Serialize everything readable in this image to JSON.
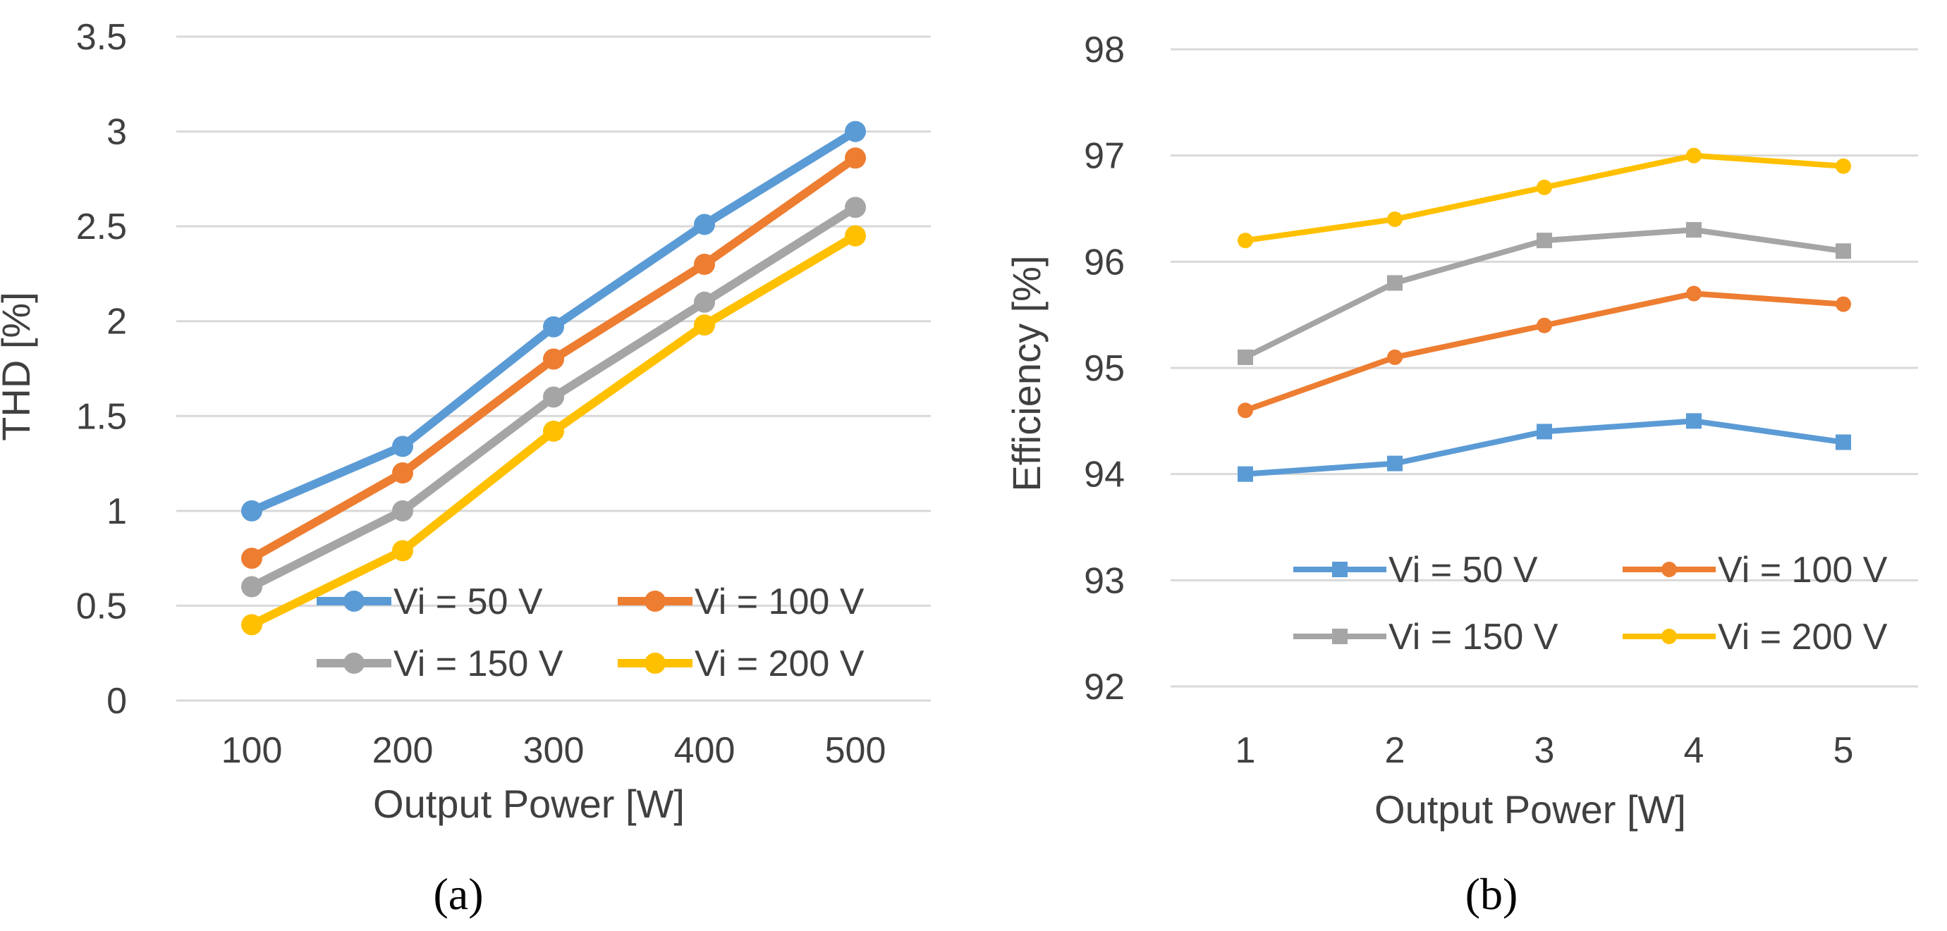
{
  "colors": {
    "s1": "#5B9BD5",
    "s2": "#ED7D31",
    "s3": "#A5A5A5",
    "s4": "#FFC000",
    "grid": "#D9D9D9",
    "text": "#404040"
  },
  "chart_data": [
    {
      "type": "line",
      "panel_label": "(a)",
      "categories": [
        "100",
        "200",
        "300",
        "400",
        "500"
      ],
      "xlabel": "Output Power [W]",
      "ylabel": "THD [%]",
      "ylim": [
        0,
        3.5
      ],
      "ytick_labels": [
        "0",
        "0.5",
        "1",
        "1.5",
        "2",
        "2.5",
        "3",
        "3.5"
      ],
      "grid": true,
      "legend_position": "bottom-right",
      "series": [
        {
          "name": "Vi = 50 V",
          "marker": "circle",
          "values": [
            1.0,
            1.34,
            1.97,
            2.51,
            3.0
          ]
        },
        {
          "name": "Vi = 100 V",
          "marker": "circle",
          "values": [
            0.75,
            1.2,
            1.8,
            2.3,
            2.86
          ]
        },
        {
          "name": "Vi = 150 V",
          "marker": "circle",
          "values": [
            0.6,
            1.0,
            1.6,
            2.1,
            2.6
          ]
        },
        {
          "name": "Vi = 200 V",
          "marker": "circle",
          "values": [
            0.4,
            0.79,
            1.42,
            1.98,
            2.45
          ]
        }
      ]
    },
    {
      "type": "line",
      "panel_label": "(b)",
      "categories": [
        "1",
        "2",
        "3",
        "4",
        "5"
      ],
      "xlabel": "Output Power [W]",
      "ylabel": "Efficiency [%]",
      "ylim": [
        92,
        98
      ],
      "ytick_labels": [
        "92",
        "93",
        "94",
        "95",
        "96",
        "97",
        "98"
      ],
      "grid": true,
      "legend_position": "bottom-right",
      "series": [
        {
          "name": "Vi = 50 V",
          "marker": "square",
          "values": [
            94.0,
            94.1,
            94.4,
            94.5,
            94.3
          ]
        },
        {
          "name": "Vi = 100 V",
          "marker": "circle",
          "values": [
            94.6,
            95.1,
            95.4,
            95.7,
            95.6
          ]
        },
        {
          "name": "Vi = 150 V",
          "marker": "square",
          "values": [
            95.1,
            95.8,
            96.2,
            96.3,
            96.1
          ]
        },
        {
          "name": "Vi = 200 V",
          "marker": "circle",
          "values": [
            96.2,
            96.4,
            96.7,
            97.0,
            96.9
          ]
        }
      ]
    }
  ]
}
